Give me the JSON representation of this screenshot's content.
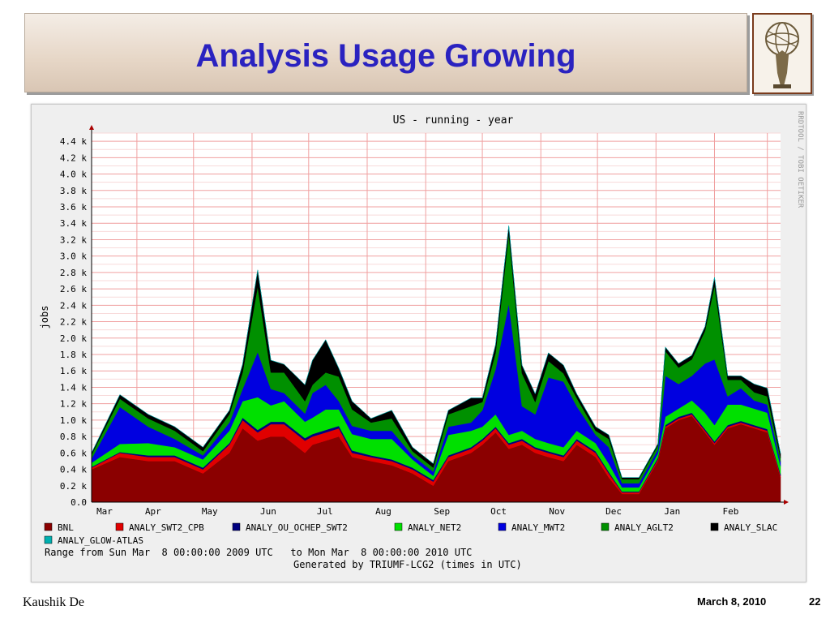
{
  "slide": {
    "title": "Analysis Usage Growing",
    "footer_left": "Kaushik De",
    "footer_date": "March 8, 2010",
    "page_number": "22",
    "logo_icon": "atlas-globe-logo-icon"
  },
  "chart_data": {
    "type": "area",
    "title": "US - running - year",
    "ylabel": "jobs",
    "side_label": "RRDTOOL / TOBI OETIKER",
    "range_text": "Range from Sun Mar  8 00:00:00 2009 UTC   to Mon Mar  8 00:00:00 2010 UTC",
    "generated_text": "Generated by TRIUMF-LCG2 (times in UTC)",
    "ylim": [
      0,
      4.5
    ],
    "y_unit": "k jobs",
    "y_ticks": [
      "0.0",
      "0.2 k",
      "0.4 k",
      "0.6 k",
      "0.8 k",
      "1.0 k",
      "1.2 k",
      "1.4 k",
      "1.6 k",
      "1.8 k",
      "2.0 k",
      "2.2 k",
      "2.4 k",
      "2.6 k",
      "2.8 k",
      "3.0 k",
      "3.2 k",
      "3.4 k",
      "3.6 k",
      "3.8 k",
      "4.0 k",
      "4.2 k",
      "4.4 k"
    ],
    "months": [
      "Mar",
      "Apr",
      "May",
      "Jun",
      "Jul",
      "Aug",
      "Sep",
      "Oct",
      "Nov",
      "Dec",
      "Jan",
      "Feb"
    ],
    "x_start": "2009-03-08",
    "x_end": "2010-03-08",
    "month_ticks": [
      "2009-03-08",
      "2009-04-01",
      "2009-05-01",
      "2009-06-01",
      "2009-07-01",
      "2009-08-01",
      "2009-09-01",
      "2009-10-01",
      "2009-11-01",
      "2009-12-01",
      "2010-01-01",
      "2010-02-01",
      "2010-03-01"
    ],
    "x": [
      "2009-03-08",
      "2009-03-23",
      "2009-04-07",
      "2009-04-21",
      "2009-05-06",
      "2009-05-20",
      "2009-05-27",
      "2009-06-04",
      "2009-06-11",
      "2009-06-18",
      "2009-06-29",
      "2009-07-03",
      "2009-07-10",
      "2009-07-17",
      "2009-07-24",
      "2009-08-03",
      "2009-08-14",
      "2009-08-25",
      "2009-09-05",
      "2009-09-13",
      "2009-09-25",
      "2009-10-01",
      "2009-10-08",
      "2009-10-15",
      "2009-10-22",
      "2009-10-29",
      "2009-11-05",
      "2009-11-13",
      "2009-11-20",
      "2009-11-30",
      "2009-12-07",
      "2009-12-14",
      "2009-12-23",
      "2010-01-02",
      "2010-01-06",
      "2010-01-13",
      "2010-01-20",
      "2010-01-27",
      "2010-02-01",
      "2010-02-08",
      "2010-02-15",
      "2010-02-22",
      "2010-03-01",
      "2010-03-08"
    ],
    "legend_position": "bottom",
    "series": [
      {
        "name": "BNL",
        "color": "#8b0000",
        "values": [
          0.4,
          0.55,
          0.5,
          0.5,
          0.35,
          0.6,
          0.9,
          0.75,
          0.8,
          0.8,
          0.6,
          0.7,
          0.75,
          0.8,
          0.55,
          0.5,
          0.45,
          0.35,
          0.2,
          0.5,
          0.6,
          0.7,
          0.85,
          0.65,
          0.7,
          0.6,
          0.55,
          0.5,
          0.7,
          0.55,
          0.3,
          0.1,
          0.1,
          0.5,
          0.9,
          1.0,
          1.05,
          0.85,
          0.7,
          0.9,
          0.95,
          0.9,
          0.85,
          0.3
        ]
      },
      {
        "name": "ANALY_SWT2_CPB",
        "color": "#e00000",
        "values": [
          0.02,
          0.05,
          0.05,
          0.05,
          0.05,
          0.1,
          0.1,
          0.1,
          0.15,
          0.15,
          0.15,
          0.1,
          0.1,
          0.1,
          0.05,
          0.05,
          0.05,
          0.05,
          0.05,
          0.05,
          0.05,
          0.05,
          0.05,
          0.05,
          0.05,
          0.05,
          0.05,
          0.05,
          0.05,
          0.05,
          0.05,
          0.02,
          0.02,
          0.02,
          0.02,
          0.02,
          0.02,
          0.02,
          0.02,
          0.02,
          0.02,
          0.02,
          0.02,
          0.02
        ]
      },
      {
        "name": "ANALY_OU_OCHEP_SWT2",
        "color": "#000080",
        "values": [
          0.01,
          0.01,
          0.02,
          0.02,
          0.02,
          0.02,
          0.03,
          0.03,
          0.03,
          0.03,
          0.03,
          0.03,
          0.03,
          0.03,
          0.03,
          0.02,
          0.02,
          0.02,
          0.02,
          0.02,
          0.02,
          0.02,
          0.02,
          0.02,
          0.02,
          0.02,
          0.02,
          0.02,
          0.02,
          0.02,
          0.02,
          0.01,
          0.01,
          0.02,
          0.02,
          0.02,
          0.02,
          0.02,
          0.02,
          0.02,
          0.02,
          0.02,
          0.02,
          0.02
        ]
      },
      {
        "name": "ANALY_NET2",
        "color": "#00e000",
        "values": [
          0.05,
          0.1,
          0.15,
          0.1,
          0.1,
          0.15,
          0.2,
          0.4,
          0.2,
          0.25,
          0.2,
          0.2,
          0.25,
          0.2,
          0.2,
          0.2,
          0.25,
          0.1,
          0.05,
          0.25,
          0.2,
          0.15,
          0.15,
          0.1,
          0.1,
          0.1,
          0.1,
          0.1,
          0.1,
          0.1,
          0.1,
          0.05,
          0.05,
          0.05,
          0.1,
          0.1,
          0.15,
          0.2,
          0.2,
          0.25,
          0.2,
          0.2,
          0.2,
          0.1
        ]
      },
      {
        "name": "ANALY_MWT2",
        "color": "#0000e0",
        "values": [
          0.05,
          0.45,
          0.2,
          0.1,
          0.05,
          0.1,
          0.15,
          0.55,
          0.2,
          0.1,
          0.1,
          0.3,
          0.3,
          0.1,
          0.1,
          0.1,
          0.1,
          0.05,
          0.05,
          0.1,
          0.1,
          0.2,
          0.55,
          1.6,
          0.3,
          0.3,
          0.8,
          0.8,
          0.3,
          0.1,
          0.2,
          0.05,
          0.05,
          0.05,
          0.5,
          0.3,
          0.3,
          0.6,
          0.8,
          0.1,
          0.2,
          0.1,
          0.1,
          0.05
        ]
      },
      {
        "name": "ANALY_AGLT2",
        "color": "#009000",
        "values": [
          0.05,
          0.1,
          0.1,
          0.1,
          0.05,
          0.1,
          0.2,
          0.8,
          0.2,
          0.25,
          0.15,
          0.1,
          0.15,
          0.3,
          0.2,
          0.1,
          0.15,
          0.05,
          0.05,
          0.15,
          0.2,
          0.1,
          0.2,
          0.85,
          0.4,
          0.15,
          0.2,
          0.1,
          0.1,
          0.05,
          0.1,
          0.05,
          0.05,
          0.05,
          0.3,
          0.2,
          0.2,
          0.4,
          0.9,
          0.2,
          0.1,
          0.1,
          0.1,
          0.05
        ]
      },
      {
        "name": "ANALY_SLAC",
        "color": "#000000",
        "values": [
          0.02,
          0.05,
          0.05,
          0.05,
          0.05,
          0.05,
          0.1,
          0.2,
          0.15,
          0.1,
          0.2,
          0.3,
          0.4,
          0.1,
          0.1,
          0.05,
          0.1,
          0.05,
          0.05,
          0.05,
          0.1,
          0.05,
          0.1,
          0.1,
          0.1,
          0.1,
          0.1,
          0.1,
          0.05,
          0.05,
          0.05,
          0.02,
          0.02,
          0.02,
          0.05,
          0.05,
          0.05,
          0.05,
          0.1,
          0.05,
          0.05,
          0.1,
          0.1,
          0.05
        ]
      },
      {
        "name": "ANALY_GLOW-ATLAS",
        "color": "#00b0b0",
        "values": [
          0.0,
          0.0,
          0.0,
          0.0,
          0.0,
          0.0,
          0.0,
          0.0,
          0.0,
          0.0,
          0.0,
          0.0,
          0.0,
          0.0,
          0.0,
          0.0,
          0.0,
          0.0,
          0.0,
          0.0,
          0.0,
          0.0,
          0.0,
          0.0,
          0.0,
          0.0,
          0.0,
          0.0,
          0.0,
          0.0,
          0.0,
          0.0,
          0.0,
          0.0,
          0.0,
          0.0,
          0.0,
          0.0,
          0.0,
          0.0,
          0.0,
          0.0,
          0.0,
          0.0
        ]
      }
    ]
  }
}
